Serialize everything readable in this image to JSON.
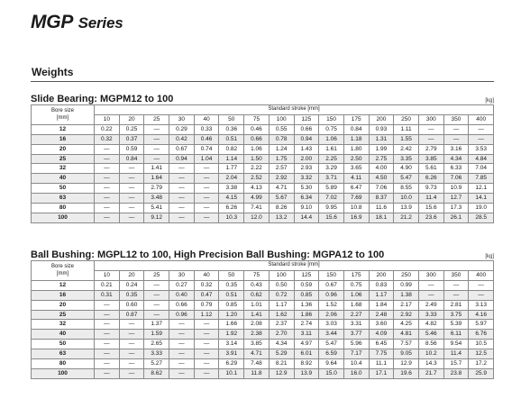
{
  "series_title": {
    "prefix": "MGP",
    "suffix": "Series"
  },
  "section_heading": "Weights",
  "tables": [
    {
      "title": "Slide Bearing: MGPM12 to 100",
      "unit": "[kg]",
      "bore_header_line1": "Bore size",
      "bore_header_line2": "[mm]",
      "stroke_header": "Standard stroke [mm]",
      "strokes": [
        "10",
        "20",
        "25",
        "30",
        "40",
        "50",
        "75",
        "100",
        "125",
        "150",
        "175",
        "200",
        "250",
        "300",
        "350",
        "400"
      ],
      "rows": [
        {
          "bore": "12",
          "values": [
            "0.22",
            "0.25",
            "—",
            "0.29",
            "0.33",
            "0.36",
            "0.46",
            "0.55",
            "0.66",
            "0.75",
            "0.84",
            "0.93",
            "1.11",
            "—",
            "—",
            "—"
          ]
        },
        {
          "bore": "16",
          "values": [
            "0.32",
            "0.37",
            "—",
            "0.42",
            "0.46",
            "0.51",
            "0.66",
            "0.78",
            "0.94",
            "1.06",
            "1.18",
            "1.31",
            "1.55",
            "—",
            "—",
            "—"
          ]
        },
        {
          "bore": "20",
          "values": [
            "—",
            "0.59",
            "—",
            "0.67",
            "0.74",
            "0.82",
            "1.06",
            "1.24",
            "1.43",
            "1.61",
            "1.80",
            "1.99",
            "2.42",
            "2.79",
            "3.16",
            "3.53"
          ]
        },
        {
          "bore": "25",
          "values": [
            "—",
            "0.84",
            "—",
            "0.94",
            "1.04",
            "1.14",
            "1.50",
            "1.75",
            "2.00",
            "2.25",
            "2.50",
            "2.75",
            "3.35",
            "3.85",
            "4.34",
            "4.84"
          ]
        },
        {
          "bore": "32",
          "values": [
            "—",
            "—",
            "1.41",
            "—",
            "—",
            "1.77",
            "2.22",
            "2.57",
            "2.93",
            "3.29",
            "3.65",
            "4.00",
            "4.90",
            "5.61",
            "6.33",
            "7.04"
          ]
        },
        {
          "bore": "40",
          "values": [
            "—",
            "—",
            "1.64",
            "—",
            "—",
            "2.04",
            "2.52",
            "2.92",
            "3.32",
            "3.71",
            "4.11",
            "4.50",
            "5.47",
            "6.26",
            "7.06",
            "7.85"
          ]
        },
        {
          "bore": "50",
          "values": [
            "—",
            "—",
            "2.79",
            "—",
            "—",
            "3.38",
            "4.13",
            "4.71",
            "5.30",
            "5.89",
            "6.47",
            "7.06",
            "8.55",
            "9.73",
            "10.9",
            "12.1"
          ]
        },
        {
          "bore": "63",
          "values": [
            "—",
            "—",
            "3.48",
            "—",
            "—",
            "4.15",
            "4.99",
            "5.67",
            "6.34",
            "7.02",
            "7.69",
            "8.37",
            "10.0",
            "11.4",
            "12.7",
            "14.1"
          ]
        },
        {
          "bore": "80",
          "values": [
            "—",
            "—",
            "5.41",
            "—",
            "—",
            "6.26",
            "7.41",
            "8.26",
            "9.10",
            "9.95",
            "10.8",
            "11.6",
            "13.9",
            "15.6",
            "17.3",
            "19.0"
          ]
        },
        {
          "bore": "100",
          "values": [
            "—",
            "—",
            "9.12",
            "—",
            "—",
            "10.3",
            "12.0",
            "13.2",
            "14.4",
            "15.6",
            "16.9",
            "18.1",
            "21.2",
            "23.6",
            "26.1",
            "28.5"
          ]
        }
      ]
    },
    {
      "title": "Ball Bushing: MGPL12 to 100, High Precision Ball Bushing: MGPA12 to 100",
      "unit": "[kg]",
      "bore_header_line1": "Bore size",
      "bore_header_line2": "[mm]",
      "stroke_header": "Standard stroke [mm]",
      "strokes": [
        "10",
        "20",
        "25",
        "30",
        "40",
        "50",
        "75",
        "100",
        "125",
        "150",
        "175",
        "200",
        "250",
        "300",
        "350",
        "400"
      ],
      "rows": [
        {
          "bore": "12",
          "values": [
            "0.21",
            "0.24",
            "—",
            "0.27",
            "0.32",
            "0.35",
            "0.43",
            "0.50",
            "0.59",
            "0.67",
            "0.75",
            "0.83",
            "0.99",
            "—",
            "—",
            "—"
          ]
        },
        {
          "bore": "16",
          "values": [
            "0.31",
            "0.35",
            "—",
            "0.40",
            "0.47",
            "0.51",
            "0.62",
            "0.72",
            "0.85",
            "0.96",
            "1.06",
            "1.17",
            "1.38",
            "—",
            "—",
            "—"
          ]
        },
        {
          "bore": "20",
          "values": [
            "—",
            "0.60",
            "—",
            "0.66",
            "0.79",
            "0.85",
            "1.01",
            "1.17",
            "1.36",
            "1.52",
            "1.68",
            "1.84",
            "2.17",
            "2.49",
            "2.81",
            "3.13"
          ]
        },
        {
          "bore": "25",
          "values": [
            "—",
            "0.87",
            "—",
            "0.96",
            "1.12",
            "1.20",
            "1.41",
            "1.62",
            "1.86",
            "2.06",
            "2.27",
            "2.48",
            "2.92",
            "3.33",
            "3.75",
            "4.16"
          ]
        },
        {
          "bore": "32",
          "values": [
            "—",
            "—",
            "1.37",
            "—",
            "—",
            "1.66",
            "2.08",
            "2.37",
            "2.74",
            "3.03",
            "3.31",
            "3.60",
            "4.25",
            "4.82",
            "5.39",
            "5.97"
          ]
        },
        {
          "bore": "40",
          "values": [
            "—",
            "—",
            "1.59",
            "—",
            "—",
            "1.92",
            "2.38",
            "2.70",
            "3.11",
            "3.44",
            "3.77",
            "4.09",
            "4.81",
            "5.46",
            "6.11",
            "6.76"
          ]
        },
        {
          "bore": "50",
          "values": [
            "—",
            "—",
            "2.65",
            "—",
            "—",
            "3.14",
            "3.85",
            "4.34",
            "4.97",
            "5.47",
            "5.96",
            "6.45",
            "7.57",
            "8.56",
            "9.54",
            "10.5"
          ]
        },
        {
          "bore": "63",
          "values": [
            "—",
            "—",
            "3.33",
            "—",
            "—",
            "3.91",
            "4.71",
            "5.29",
            "6.01",
            "6.59",
            "7.17",
            "7.75",
            "9.05",
            "10.2",
            "11.4",
            "12.5"
          ]
        },
        {
          "bore": "80",
          "values": [
            "—",
            "—",
            "5.27",
            "—",
            "—",
            "6.29",
            "7.48",
            "8.21",
            "8.92",
            "9.64",
            "10.4",
            "11.1",
            "12.9",
            "14.3",
            "15.7",
            "17.2"
          ]
        },
        {
          "bore": "100",
          "values": [
            "—",
            "—",
            "8.62",
            "—",
            "—",
            "10.1",
            "11.8",
            "12.9",
            "13.9",
            "15.0",
            "16.0",
            "17.1",
            "19.6",
            "21.7",
            "23.8",
            "25.9"
          ]
        }
      ]
    }
  ]
}
